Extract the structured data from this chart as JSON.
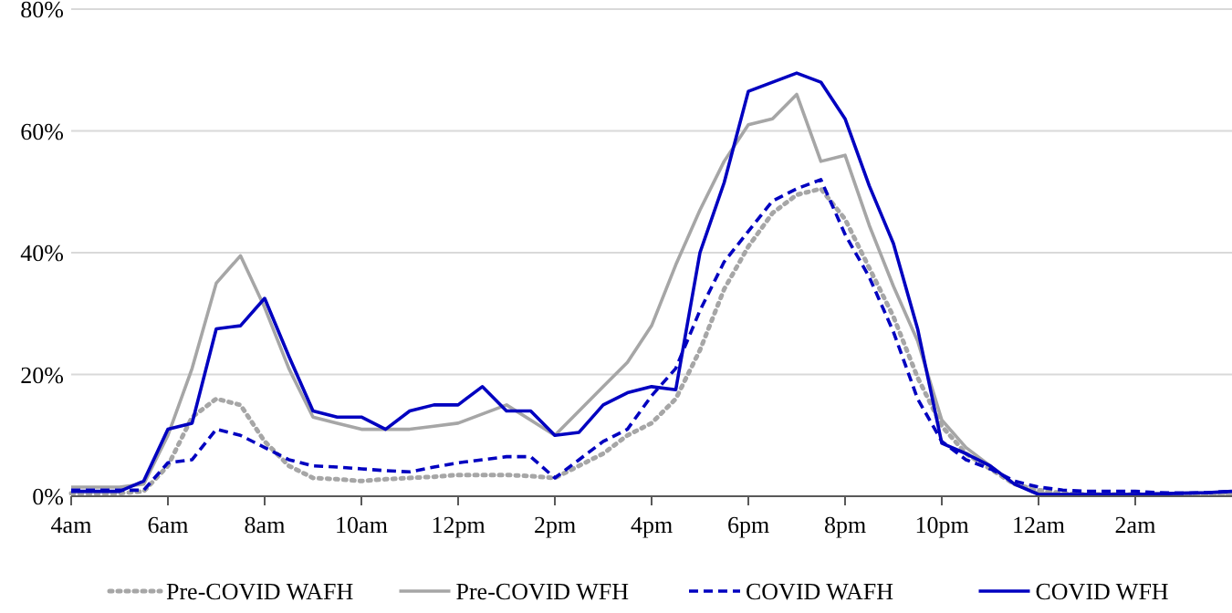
{
  "chart_data": {
    "type": "line",
    "ylim": [
      0,
      80
    ],
    "categories": [
      "4am",
      null,
      null,
      null,
      "6am",
      null,
      null,
      null,
      "8am",
      null,
      null,
      null,
      "10am",
      null,
      null,
      null,
      "12pm",
      null,
      null,
      null,
      "2pm",
      null,
      null,
      null,
      "4pm",
      null,
      null,
      null,
      "6pm",
      null,
      null,
      null,
      "8pm",
      null,
      null,
      null,
      "10pm",
      null,
      null,
      null,
      "12am",
      null,
      null,
      null,
      "2am",
      null,
      null,
      null,
      null
    ],
    "yticks": [
      {
        "value": 0,
        "label": "0%"
      },
      {
        "value": 20,
        "label": "20%"
      },
      {
        "value": 40,
        "label": "40%"
      },
      {
        "value": 60,
        "label": "60%"
      },
      {
        "value": 80,
        "label": "80%"
      }
    ],
    "grid": "y",
    "legend": "bottom",
    "series": [
      {
        "name": "Pre-COVID WAFH",
        "color": "#a6a6a6",
        "line_style": "dotted",
        "values": [
          0.5,
          0.5,
          0.5,
          0.8,
          5,
          13,
          16,
          15,
          9,
          5,
          3,
          2.8,
          2.5,
          2.8,
          3,
          3.2,
          3.5,
          3.5,
          3.5,
          3.3,
          3,
          5,
          7,
          10,
          12,
          16,
          24,
          34,
          41,
          46.5,
          49.5,
          50.5,
          45.5,
          37.5,
          29.5,
          19.5,
          11.5,
          7,
          4.5,
          2,
          1,
          0.5,
          0.3,
          0.3,
          0.3,
          0.3,
          0.3,
          0.3,
          0.3
        ]
      },
      {
        "name": "Pre-COVID WFH",
        "color": "#a6a6a6",
        "line_style": "solid",
        "values": [
          1.5,
          1.5,
          1.5,
          2,
          10,
          21,
          35,
          39.5,
          31,
          21,
          13,
          12,
          11,
          11,
          11,
          11.5,
          12,
          13.5,
          15,
          12.5,
          10,
          14,
          18,
          22,
          28,
          38,
          47,
          55,
          61,
          62,
          66,
          55,
          56,
          44.5,
          34.5,
          25.5,
          12.5,
          8,
          5,
          2,
          0.5,
          0.3,
          0.3,
          0.3,
          0.3,
          0.4,
          0.5,
          0.5,
          0.5
        ]
      },
      {
        "name": "COVID WAFH",
        "color": "#0000c0",
        "line_style": "dashed",
        "values": [
          1,
          1,
          1,
          1,
          5.5,
          6,
          11,
          10,
          8,
          6,
          5,
          4.8,
          4.5,
          4.2,
          4,
          4.8,
          5.5,
          6,
          6.5,
          6.5,
          3,
          6,
          9,
          11,
          16.5,
          21,
          30.5,
          38.5,
          43.5,
          48.5,
          50.5,
          52,
          43,
          36,
          27,
          16,
          9,
          6,
          4.5,
          2.5,
          1.5,
          1,
          0.8,
          0.8,
          0.8,
          0.6,
          0.5,
          0.6,
          0.8
        ]
      },
      {
        "name": "COVID WFH",
        "color": "#0000c0",
        "line_style": "solid",
        "values": [
          0.8,
          0.8,
          0.8,
          2.5,
          11,
          12,
          27.5,
          28,
          32.5,
          23,
          14,
          13,
          13,
          11,
          14,
          15,
          15,
          18,
          14,
          14,
          10,
          10.5,
          15,
          17,
          18,
          17.5,
          40,
          51.5,
          66.5,
          68,
          69.5,
          68,
          62,
          51,
          41.5,
          27.5,
          8.7,
          7,
          5,
          2,
          0.3,
          0.3,
          0.3,
          0.3,
          0.3,
          0.4,
          0.5,
          0.6,
          0.8
        ]
      }
    ]
  }
}
